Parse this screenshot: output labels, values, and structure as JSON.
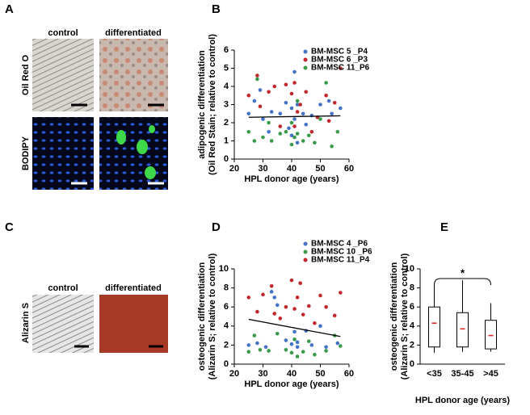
{
  "figure": {
    "panels": [
      {
        "letter": "A",
        "columns": [
          "control",
          "differentiated"
        ],
        "rows": [
          "Oil Red O",
          "BODIPY"
        ]
      },
      {
        "letter": "C",
        "columns": [
          "control",
          "differentiated"
        ],
        "rows": [
          "Alizarin S"
        ]
      }
    ]
  },
  "chart_data": [
    {
      "type": "scatter",
      "panel_label": "B",
      "ylabel": [
        "adipogenic differentiation",
        "(Oil Red Stain; relative to control)"
      ],
      "xlabel": "HPL donor age (years)",
      "xlim": [
        20,
        60
      ],
      "xticks": [
        20,
        30,
        40,
        50,
        60
      ],
      "ylim": [
        0,
        6
      ],
      "yticks": [
        0,
        1,
        2,
        3,
        4,
        5,
        6
      ],
      "legend": "top",
      "series": [
        {
          "name": "BM-MSC 5 _P4",
          "color": "#4472c4",
          "x": [
            25,
            27,
            29,
            30,
            32,
            33,
            36,
            38,
            39,
            40,
            40,
            41,
            41,
            42,
            42,
            44,
            45,
            47,
            50,
            53,
            54,
            57
          ],
          "y": [
            2.5,
            3.2,
            3.8,
            2.2,
            1.5,
            2.6,
            2.5,
            3.1,
            1.7,
            2.8,
            1.3,
            4.8,
            2.2,
            0.9,
            3.0,
            2.5,
            1.9,
            2.4,
            3.0,
            3.2,
            2.5,
            2.8
          ]
        },
        {
          "name": "BM-MSC 6 _P3",
          "color": "#c0272d",
          "x": [
            25,
            28,
            29,
            32,
            34,
            36,
            38,
            40,
            41,
            41,
            42,
            43,
            45,
            47,
            49,
            52,
            53,
            55,
            57
          ],
          "y": [
            3.5,
            4.6,
            2.9,
            3.7,
            4.0,
            1.8,
            4.1,
            3.6,
            4.2,
            1.8,
            2.6,
            3.0,
            3.7,
            1.5,
            2.3,
            3.5,
            2.1,
            3.1,
            5.0
          ]
        },
        {
          "name": "BM-MSC 11_P6",
          "color": "#3a9a4a",
          "x": [
            25,
            27,
            28,
            30,
            32,
            33,
            36,
            38,
            40,
            40,
            41,
            42,
            42,
            44,
            46,
            48,
            50,
            52,
            54,
            56
          ],
          "y": [
            1.5,
            1.0,
            4.4,
            1.2,
            2.0,
            1.0,
            1.4,
            1.5,
            2.0,
            0.8,
            1.2,
            3.2,
            1.4,
            1.0,
            1.3,
            0.9,
            2.2,
            4.2,
            0.7,
            1.5
          ]
        }
      ],
      "trendline": {
        "x": [
          25,
          57
        ],
        "y": [
          2.3,
          2.38
        ]
      }
    },
    {
      "type": "scatter",
      "panel_label": "D",
      "ylabel": [
        "osteogenic differentiation",
        "(Alizarin S; relative to control)"
      ],
      "xlabel": "HPL donor age (years)",
      "xlim": [
        20,
        60
      ],
      "xticks": [
        20,
        30,
        40,
        50,
        60
      ],
      "ylim": [
        0,
        10
      ],
      "yticks": [
        0,
        2,
        4,
        6,
        8,
        10
      ],
      "legend": "top",
      "series": [
        {
          "name": "BM-MSC 4 _P6",
          "color": "#4472c4",
          "x": [
            25,
            28,
            31,
            33,
            34,
            35,
            38,
            40,
            41,
            42,
            42,
            45,
            47,
            50,
            52,
            56
          ],
          "y": [
            2.0,
            2.2,
            1.8,
            7.6,
            7.0,
            6.2,
            2.5,
            2.1,
            3.4,
            1.8,
            2.3,
            3.5,
            2.0,
            4.0,
            1.8,
            2.2
          ]
        },
        {
          "name": "BM-MSC 10 _P6",
          "color": "#3a9a4a",
          "x": [
            25,
            27,
            29,
            32,
            35,
            38,
            40,
            41,
            42,
            44,
            46,
            48,
            52,
            55,
            57
          ],
          "y": [
            1.3,
            3.0,
            1.5,
            1.4,
            3.2,
            1.5,
            1.2,
            2.6,
            0.8,
            1.3,
            2.4,
            1.0,
            1.4,
            3.0,
            1.9
          ]
        },
        {
          "name": "BM-MSC 11_P4",
          "color": "#c0272d",
          "x": [
            25,
            28,
            30,
            33,
            34,
            36,
            38,
            40,
            41,
            42,
            43,
            44,
            46,
            48,
            50,
            52,
            55,
            57
          ],
          "y": [
            7.0,
            5.5,
            7.3,
            8.2,
            5.3,
            4.8,
            6.0,
            8.8,
            5.8,
            7.0,
            8.5,
            5.2,
            6.1,
            4.3,
            7.2,
            6.0,
            5.1,
            7.5
          ]
        }
      ],
      "trendline": {
        "x": [
          25,
          57
        ],
        "y": [
          4.7,
          2.9
        ]
      }
    },
    {
      "type": "box",
      "panel_label": "E",
      "ylabel": [
        "osteogenic differentiation",
        "(Alizarin S; relative to control)"
      ],
      "xlabel": "HPL donor age (years)",
      "categories": [
        "<35",
        "35-45",
        ">45"
      ],
      "ylim": [
        0,
        10
      ],
      "yticks": [
        0,
        2,
        4,
        6,
        8,
        10
      ],
      "median_color": "#e02020",
      "boxes": [
        {
          "min": 1.2,
          "q1": 1.8,
          "median": 4.3,
          "q3": 6.0,
          "max": 8.3
        },
        {
          "min": 1.3,
          "q1": 1.8,
          "median": 3.7,
          "q3": 5.4,
          "max": 8.8
        },
        {
          "min": 1.3,
          "q1": 1.6,
          "median": 3.0,
          "q3": 4.6,
          "max": 6.4
        }
      ],
      "annotation": "*"
    }
  ]
}
